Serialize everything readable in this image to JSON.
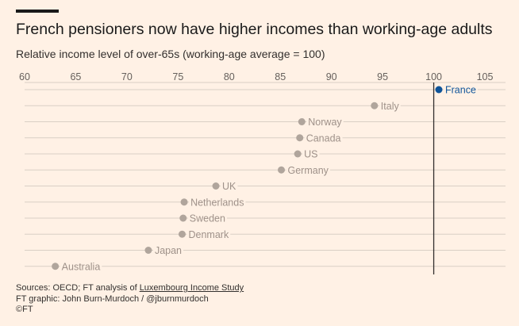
{
  "header": {
    "title": "French pensioners now have higher incomes than working-age adults",
    "subtitle": "Relative income level of over-65s (working-age average = 100)"
  },
  "chart_data": {
    "type": "scatter",
    "title": "French pensioners now have higher incomes than working-age adults",
    "subtitle": "Relative income level of over-65s (working-age average = 100)",
    "xlim": [
      60,
      107
    ],
    "xticks": [
      60,
      65,
      70,
      75,
      80,
      85,
      90,
      95,
      100,
      105
    ],
    "reference_line": 100,
    "grid": true,
    "categories": [
      "France",
      "Italy",
      "Norway",
      "Canada",
      "US",
      "Germany",
      "UK",
      "Netherlands",
      "Sweden",
      "Denmark",
      "Japan",
      "Australia"
    ],
    "values": [
      100.5,
      94.2,
      87.1,
      86.9,
      86.7,
      85.1,
      78.7,
      75.6,
      75.5,
      75.4,
      72.1,
      63.0
    ],
    "highlight": "France",
    "colors": {
      "highlight": "#0f5499",
      "default": "#b0a59c",
      "reference": "#33302e",
      "grid": "#d9cfc5"
    }
  },
  "footer": {
    "source_prefix": "Sources: OECD; FT analysis of ",
    "source_link": "Luxembourg Income Study",
    "credit": "FT graphic: John Burn-Murdoch / @jburnmurdoch",
    "copyright": "©FT"
  }
}
